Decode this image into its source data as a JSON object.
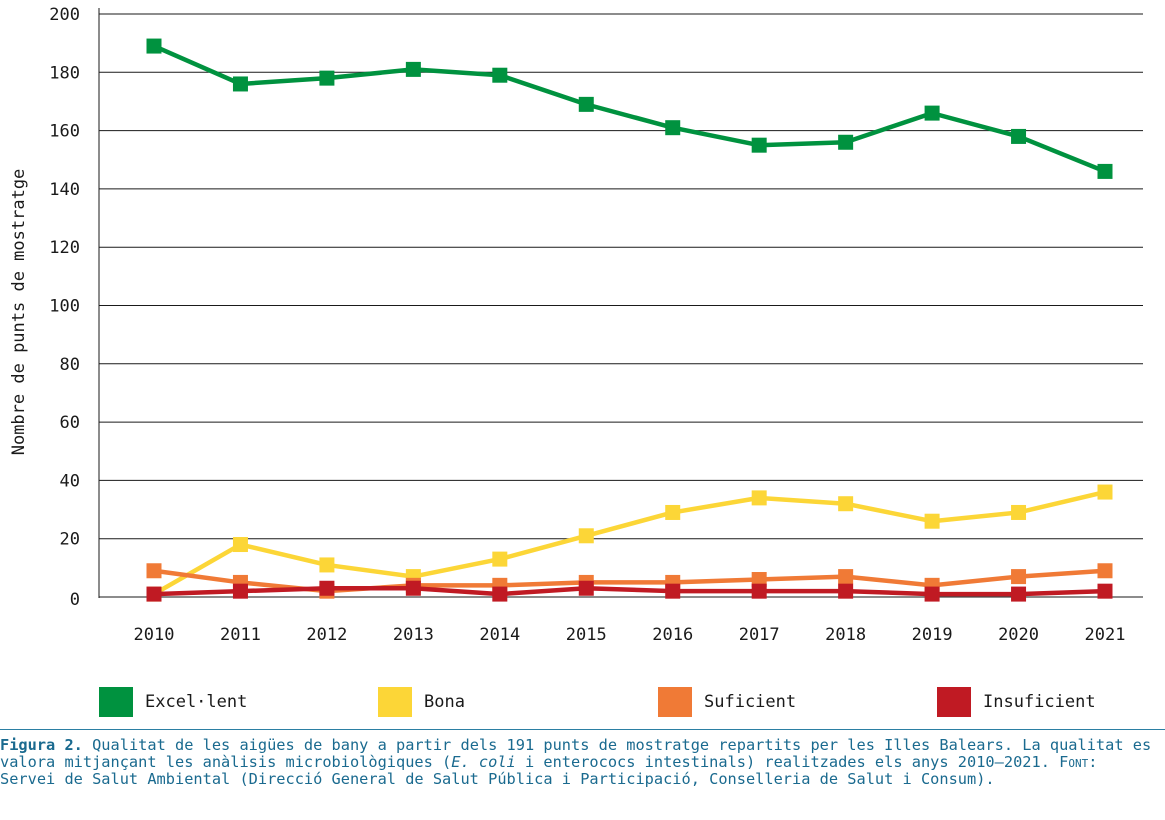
{
  "chart_data": {
    "type": "line",
    "ylabel": "Nombre de punts de mostratge",
    "ylim": [
      0,
      200
    ],
    "yticks": [
      0,
      20,
      40,
      60,
      80,
      100,
      120,
      140,
      160,
      180,
      200
    ],
    "grid": true,
    "legend_position": "bottom",
    "categories": [
      "2010",
      "2011",
      "2012",
      "2013",
      "2014",
      "2015",
      "2016",
      "2017",
      "2018",
      "2019",
      "2020",
      "2021"
    ],
    "series": [
      {
        "name": "Excel·lent",
        "color": "#00923f",
        "values": [
          189,
          176,
          178,
          181,
          179,
          169,
          161,
          155,
          156,
          166,
          158,
          146
        ]
      },
      {
        "name": "Bona",
        "color": "#fcd637",
        "values": [
          1,
          18,
          11,
          7,
          13,
          21,
          29,
          34,
          32,
          26,
          29,
          36
        ]
      },
      {
        "name": "Suficient",
        "color": "#f07a36",
        "values": [
          9,
          5,
          2,
          4,
          4,
          5,
          5,
          6,
          7,
          4,
          7,
          9
        ]
      },
      {
        "name": "Insuficient",
        "color": "#c01a23",
        "values": [
          1,
          2,
          3,
          3,
          1,
          3,
          2,
          2,
          2,
          1,
          1,
          2
        ]
      }
    ]
  },
  "caption": {
    "label": "Figura 2.",
    "text_1": " Qualitat de les aigües de bany a partir dels 191 punts de mostratge repartits per les Illes Balears. La qualitat es valora mitjançant les anàlisis microbiològiques (",
    "italic": "E. coli",
    "text_2": " i enterococs intestinals) realitzades els anys 2010–2021. ",
    "font_label": "Font",
    "text_3": ": Servei de Salut Ambiental (Direcció General de Salut Pública i Participació, Conselleria de Salut i Consum)."
  }
}
